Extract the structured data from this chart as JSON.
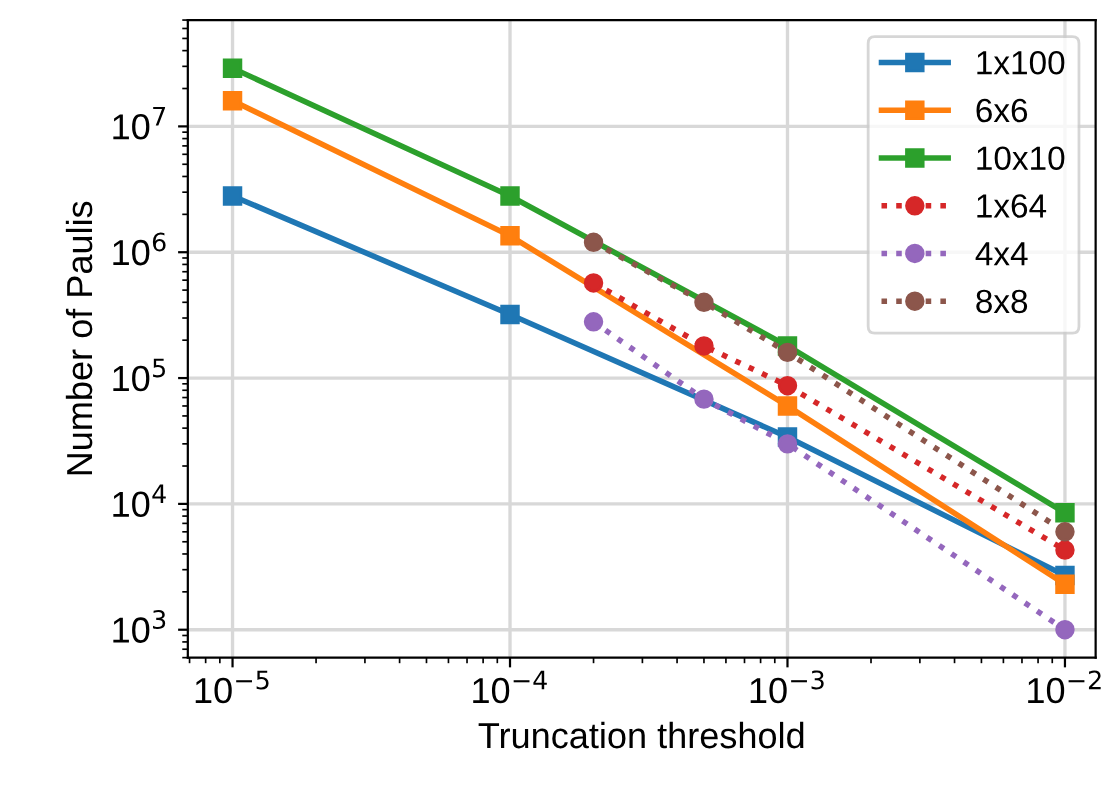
{
  "chart_data": {
    "type": "line",
    "xlabel": "Truncation threshold",
    "ylabel": "Number of Paulis",
    "log": "xy",
    "grid": true,
    "legend": "top right",
    "xlim": [
      6.9e-06,
      0.0129
    ],
    "ylim": [
      600,
      70000000.0
    ],
    "xticks": [
      {
        "value": 1e-05,
        "label": "10$^{−5}$"
      },
      {
        "value": 0.0001,
        "label": "10$^{−4}$"
      },
      {
        "value": 0.001,
        "label": "10$^{−3}$"
      },
      {
        "value": 0.01,
        "label": "10$^{−2}$"
      }
    ],
    "yticks": [
      {
        "value": 1000.0,
        "label": "10$^{3}$"
      },
      {
        "value": 10000.0,
        "label": "10$^{4}$"
      },
      {
        "value": 100000.0,
        "label": "10$^{5}$"
      },
      {
        "value": 1000000.0,
        "label": "10$^{6}$"
      },
      {
        "value": 10000000.0,
        "label": "10$^{7}$"
      }
    ],
    "series": [
      {
        "name": "1x100",
        "color": "#1f77b4",
        "marker": "square",
        "line_style": "solid",
        "x": [
          1e-05,
          0.0001,
          0.001,
          0.01
        ],
        "values": [
          2800000.0,
          320000.0,
          34000.0,
          2700.0
        ]
      },
      {
        "name": "6x6",
        "color": "#ff7f0e",
        "marker": "square",
        "line_style": "solid",
        "x": [
          1e-05,
          0.0001,
          0.001,
          0.01
        ],
        "values": [
          16000000.0,
          1350000.0,
          60000.0,
          2300.0
        ]
      },
      {
        "name": "10x10",
        "color": "#2ca02c",
        "marker": "square",
        "line_style": "solid",
        "x": [
          1e-05,
          0.0001,
          0.001,
          0.01
        ],
        "values": [
          29000000.0,
          2800000.0,
          180000.0,
          8500.0
        ]
      },
      {
        "name": "1x64",
        "color": "#d62728",
        "marker": "circle",
        "line_style": "dotted",
        "x": [
          0.0002,
          0.0005,
          0.001,
          0.01
        ],
        "values": [
          570000.0,
          180000.0,
          87000.0,
          4300.0
        ]
      },
      {
        "name": "4x4",
        "color": "#9467bd",
        "marker": "circle",
        "line_style": "dotted",
        "x": [
          0.0002,
          0.0005,
          0.001,
          0.01
        ],
        "values": [
          280000.0,
          68000.0,
          30000.0,
          1000.0
        ]
      },
      {
        "name": "8x8",
        "color": "#8c564b",
        "marker": "circle",
        "line_style": "dotted",
        "x": [
          0.0002,
          0.0005,
          0.001,
          0.01
        ],
        "values": [
          1200000.0,
          400000.0,
          160000.0,
          6000.0
        ]
      }
    ]
  }
}
